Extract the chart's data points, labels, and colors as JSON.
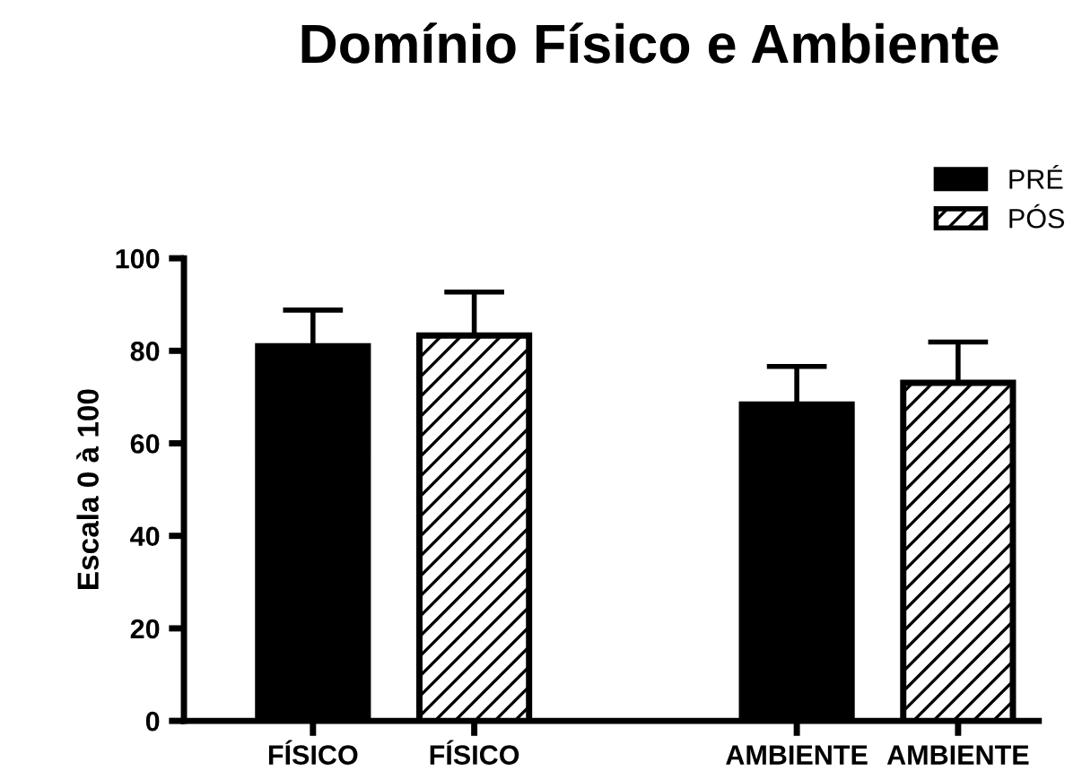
{
  "chart_data": {
    "type": "bar",
    "title": "Domínio Físico e Ambiente",
    "ylabel": "Escala 0 à 100",
    "categories": [
      "FÍSICO",
      "FÍSICO",
      null,
      "AMBIENTE",
      "AMBIENTE"
    ],
    "series": [
      {
        "name": "PRÉ",
        "color": "#000000",
        "values": [
          81,
          null,
          null,
          68.4,
          null
        ],
        "errors": [
          7.8,
          null,
          null,
          8.2,
          null
        ]
      },
      {
        "name": "PÓS",
        "color": "#ffffff",
        "values": [
          null,
          83.3,
          null,
          null,
          73.1
        ],
        "errors": [
          null,
          9.4,
          null,
          null,
          8.8
        ]
      }
    ],
    "ylim": [
      0,
      100
    ],
    "yticks": [
      0,
      20,
      40,
      60,
      80,
      100
    ],
    "grid": false,
    "legend": "top right"
  }
}
